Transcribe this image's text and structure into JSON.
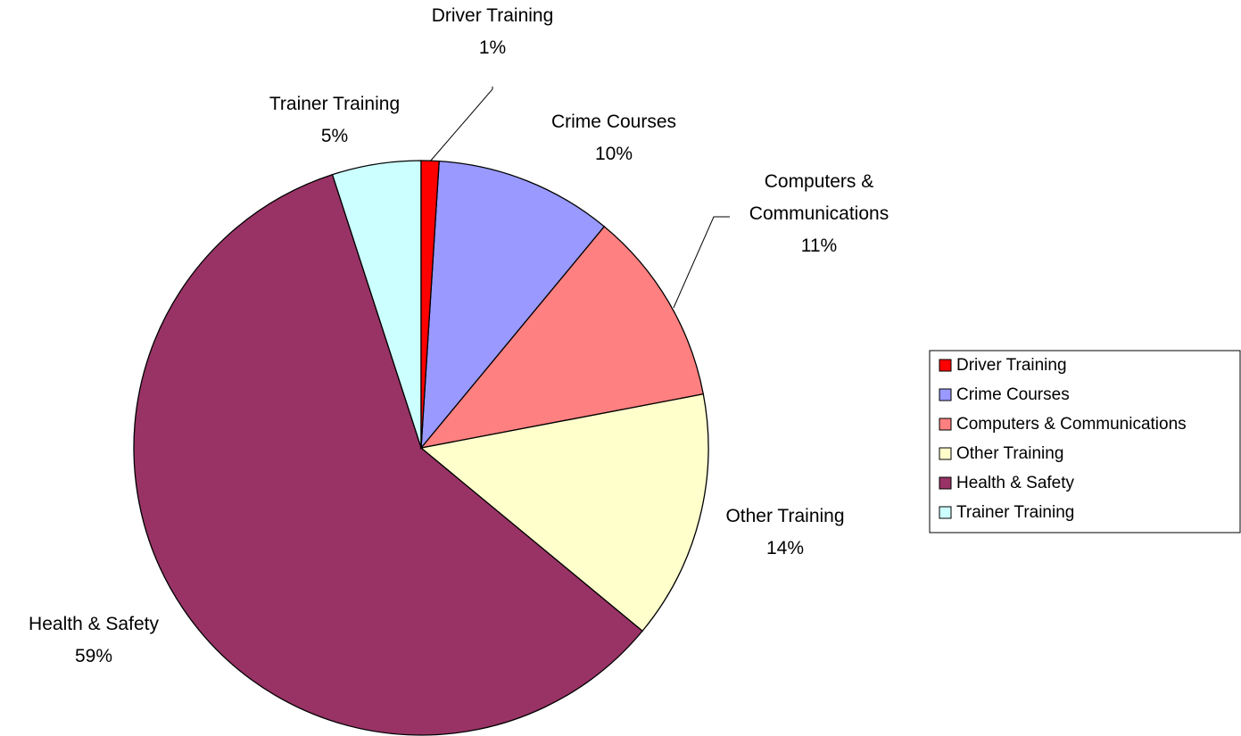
{
  "chart_data": {
    "type": "pie",
    "categories": [
      "Driver Training",
      "Crime Courses",
      "Computers & Communications",
      "Other Training",
      "Health & Safety",
      "Trainer Training"
    ],
    "values": [
      1,
      10,
      11,
      14,
      59,
      5
    ],
    "value_labels": [
      "1%",
      "10%",
      "11%",
      "14%",
      "59%",
      "5%"
    ],
    "colors": [
      "#FF0000",
      "#9999FF",
      "#FF8080",
      "#FFFFCC",
      "#993366",
      "#CCFFFF"
    ],
    "legend": "right"
  }
}
